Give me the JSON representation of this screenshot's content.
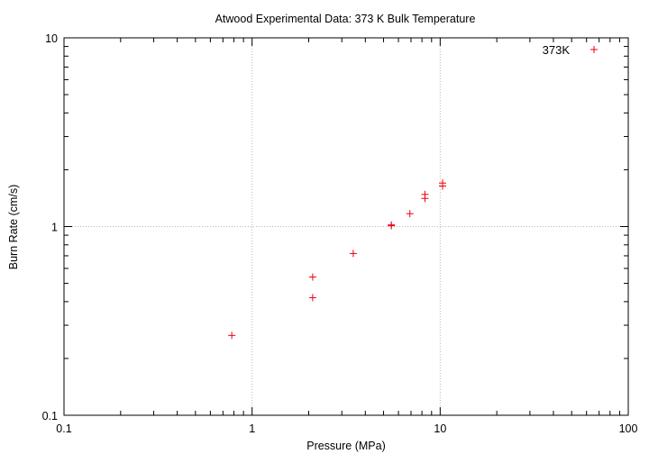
{
  "chart_data": {
    "type": "scatter",
    "title": "Atwood Experimental Data: 373 K Bulk Temperature",
    "xlabel": "Pressure (MPa)",
    "ylabel": "Burn Rate (cm/s)",
    "xscale": "log",
    "yscale": "log",
    "xlim": [
      0.1,
      100
    ],
    "ylim": [
      0.1,
      10
    ],
    "xticks": [
      0.1,
      1,
      10,
      100
    ],
    "yticks": [
      0.1,
      1,
      10
    ],
    "xtick_labels": [
      "0.1",
      "1",
      "10",
      "100"
    ],
    "ytick_labels": [
      "0.1",
      "1",
      "10"
    ],
    "grid": true,
    "legend_position": "top-right",
    "series": [
      {
        "name": "373K",
        "color": "#e8000b",
        "marker": "plus",
        "x": [
          0.78,
          2.1,
          2.1,
          3.45,
          5.5,
          5.5,
          6.9,
          8.3,
          8.3,
          10.3,
          10.3
        ],
        "y": [
          0.265,
          0.42,
          0.54,
          0.72,
          1.01,
          1.02,
          1.17,
          1.41,
          1.48,
          1.64,
          1.7
        ]
      }
    ]
  }
}
